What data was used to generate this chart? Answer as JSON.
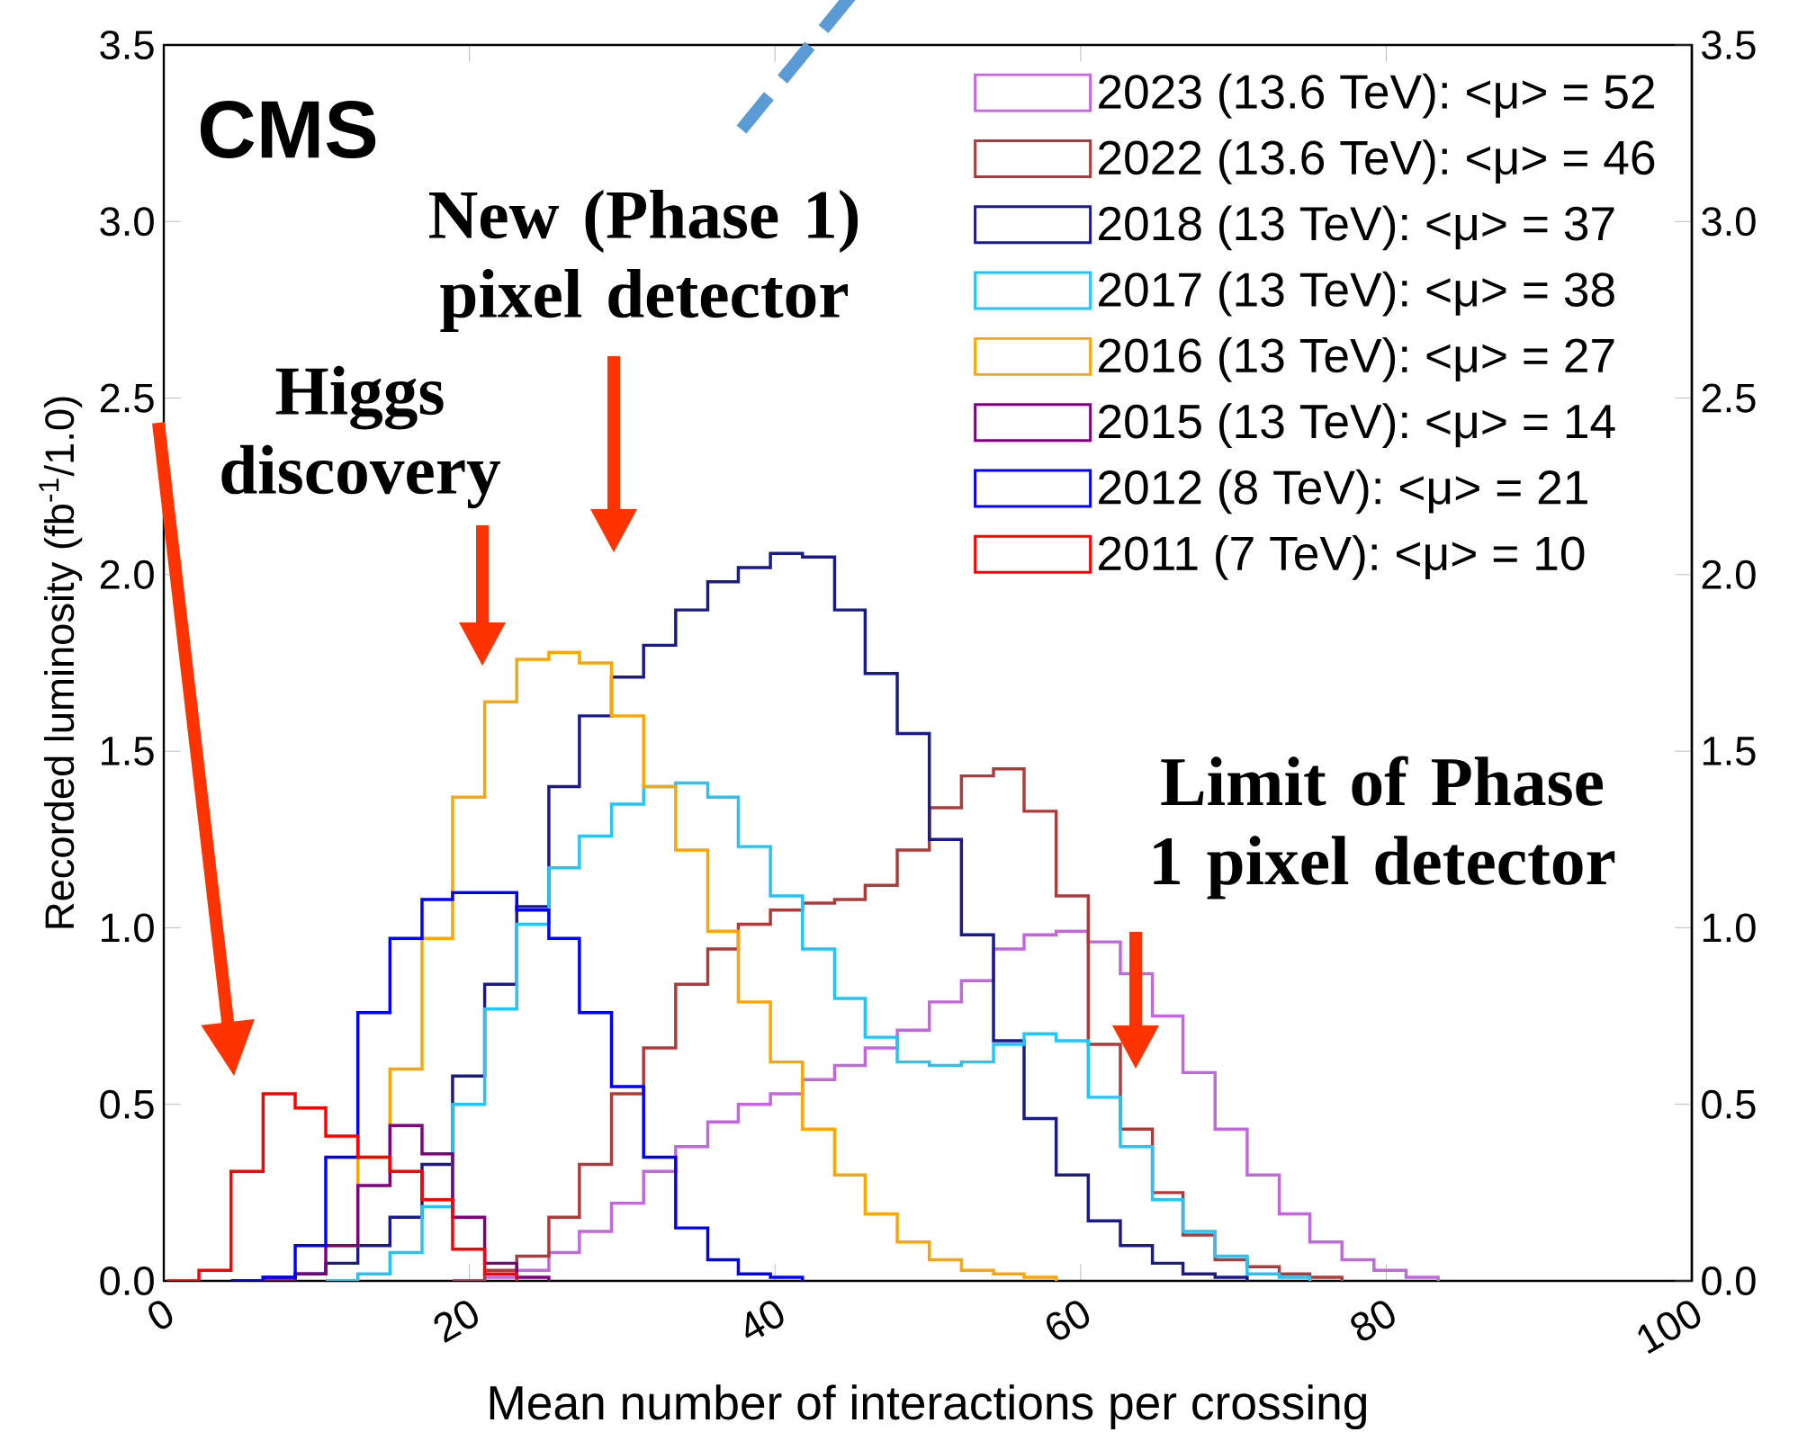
{
  "chart_data": {
    "type": "step",
    "xlabel": "Mean number of interactions per crossing",
    "ylabel": "Recorded luminosity (fb$^{-1}$/1.0)",
    "xlim": [
      0,
      100
    ],
    "ylim": [
      0,
      3.5
    ],
    "xticks": [
      0,
      20,
      40,
      60,
      80,
      100
    ],
    "yticks": [
      {
        "value": 0,
        "label": "0.0"
      },
      0.5,
      {
        "value": 1,
        "label": "1.0"
      },
      1.5,
      {
        "value": 2,
        "label": "2.0"
      },
      2.5,
      {
        "value": 3,
        "label": "3.0"
      },
      3.5
    ],
    "y2lim": [
      0,
      3.5
    ],
    "y2ticks": [
      {
        "value": 0,
        "label": "0.0"
      },
      0.5,
      {
        "value": 1,
        "label": "1.0"
      },
      1.5,
      {
        "value": 2,
        "label": "2.0"
      },
      2.5,
      {
        "value": 3,
        "label": "3.0"
      },
      3.5
    ],
    "legend": "top right",
    "x": [
      0.2,
      2.3,
      4.4,
      6.5,
      8.6,
      10.6,
      12.7,
      14.8,
      16.9,
      18.9,
      21.0,
      23.1,
      25.2,
      27.2,
      29.3,
      31.4,
      33.5,
      35.6,
      37.6,
      39.7,
      41.8,
      43.9,
      45.9,
      48.0,
      50.1,
      52.2,
      54.3,
      56.3,
      58.4,
      60.5,
      62.6,
      64.7,
      66.7,
      68.8,
      70.9,
      73.0,
      75.0,
      77.1,
      79.2,
      81.3,
      83.4
    ],
    "series": [
      {
        "name": "2023 (13.6 TeV): <μ> = 52",
        "color": "#c466e0",
        "values": [
          null,
          null,
          null,
          null,
          null,
          null,
          null,
          null,
          null,
          0,
          0.01,
          0.03,
          0.08,
          0.14,
          0.22,
          0.31,
          0.38,
          0.45,
          0.5,
          0.53,
          0.57,
          0.61,
          0.66,
          0.71,
          0.79,
          0.85,
          0.94,
          0.98,
          0.99,
          0.96,
          0.87,
          0.75,
          0.59,
          0.43,
          0.3,
          0.19,
          0.11,
          0.06,
          0.03,
          0.01,
          0
        ]
      },
      {
        "name": "2022 (13.6 TeV): <μ> = 46",
        "color": "#b03a3a",
        "values": [
          null,
          null,
          null,
          null,
          null,
          null,
          null,
          null,
          null,
          0,
          0.03,
          0.07,
          0.18,
          0.33,
          0.53,
          0.66,
          0.84,
          0.94,
          1.01,
          1.05,
          1.07,
          1.08,
          1.12,
          1.22,
          1.34,
          1.43,
          1.45,
          1.33,
          1.09,
          0.67,
          0.43,
          0.25,
          0.13,
          0.06,
          0.04,
          0.02,
          0.01,
          0,
          null,
          null,
          null
        ]
      },
      {
        "name": "2018 (13 TeV): <μ> = 37",
        "color": "#1a1a8c",
        "values": [
          null,
          null,
          0,
          0.01,
          0.02,
          0.05,
          0.1,
          0.18,
          0.33,
          0.58,
          0.84,
          1.06,
          1.4,
          1.6,
          1.71,
          1.8,
          1.9,
          1.98,
          2.02,
          2.06,
          2.05,
          1.9,
          1.72,
          1.55,
          1.25,
          0.98,
          0.68,
          0.46,
          0.3,
          0.17,
          0.1,
          0.05,
          0.02,
          0.01,
          0,
          null,
          null,
          null,
          null,
          null,
          null
        ]
      },
      {
        "name": "2017 (13 TeV): <μ> = 38",
        "color": "#22c5f5",
        "values": [
          null,
          null,
          null,
          null,
          null,
          0,
          0.02,
          0.08,
          0.21,
          0.5,
          0.77,
          1.01,
          1.17,
          1.26,
          1.35,
          1.4,
          1.41,
          1.37,
          1.23,
          1.09,
          0.94,
          0.8,
          0.69,
          0.62,
          0.61,
          0.62,
          0.67,
          0.7,
          0.68,
          0.52,
          0.38,
          0.23,
          0.14,
          0.07,
          0.02,
          0.01,
          0,
          null,
          null,
          null,
          null
        ]
      },
      {
        "name": "2016 (13 TeV): <μ> = 27",
        "color": "#ffa500",
        "values": [
          null,
          null,
          null,
          null,
          null,
          0.1,
          0.35,
          0.6,
          0.97,
          1.37,
          1.64,
          1.76,
          1.78,
          1.75,
          1.6,
          1.4,
          1.22,
          0.99,
          0.79,
          0.62,
          0.43,
          0.3,
          0.19,
          0.11,
          0.06,
          0.03,
          0.02,
          0.01,
          0,
          null,
          null,
          null,
          null,
          null,
          null,
          null,
          null,
          null,
          null,
          null,
          null
        ]
      },
      {
        "name": "2015 (13 TeV): <μ> = 14",
        "color": "#800080",
        "values": [
          null,
          null,
          null,
          0,
          0.02,
          0.1,
          0.27,
          0.44,
          0.36,
          0.18,
          0.05,
          0.01,
          0,
          null,
          null,
          null,
          null,
          null,
          null,
          null,
          null,
          null,
          null,
          null,
          null,
          null,
          null,
          null,
          null,
          null,
          null,
          null,
          null,
          null,
          null,
          null,
          null,
          null,
          null,
          null,
          null
        ]
      },
      {
        "name": "2012 (8 TeV): <μ> = 21",
        "color": "#0000ff",
        "values": [
          null,
          null,
          0,
          0.01,
          0.1,
          0.35,
          0.76,
          0.97,
          1.08,
          1.1,
          1.1,
          1.05,
          0.97,
          0.76,
          0.55,
          0.35,
          0.15,
          0.06,
          0.02,
          0.01,
          0,
          null,
          null,
          null,
          null,
          null,
          null,
          null,
          null,
          null,
          null,
          null,
          null,
          null,
          null,
          null,
          null,
          null,
          null,
          null,
          null
        ]
      },
      {
        "name": "2011 (7 TeV): <μ> = 10",
        "color": "#ff0000",
        "values": [
          0,
          0.03,
          0.31,
          0.53,
          0.49,
          0.41,
          0.35,
          0.31,
          0.23,
          0.09,
          0.02,
          0,
          null,
          null,
          null,
          null,
          null,
          null,
          null,
          null,
          null,
          null,
          null,
          null,
          null,
          null,
          null,
          null,
          null,
          null,
          null,
          null,
          null,
          null,
          null,
          null,
          null,
          null,
          null,
          null,
          null
        ]
      }
    ],
    "annotations": [
      "CMS",
      "Higgs discovery",
      "New (Phase 1) pixel detector",
      "Limit of Phase 1 pixel detector"
    ]
  }
}
